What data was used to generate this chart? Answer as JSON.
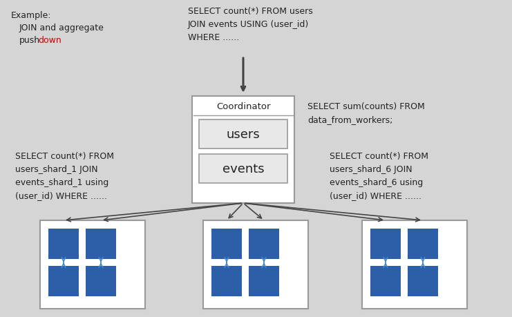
{
  "bg_color": "#d5d5d5",
  "title_color": "#222222",
  "pushdown_color": "#cc0000",
  "query_top": "SELECT count(*) FROM users\nJOIN events USING (user_id)\nWHERE ......",
  "query_right": "SELECT sum(counts) FROM\ndata_from_workers;",
  "query_left": "SELECT count(*) FROM\nusers_shard_1 JOIN\nevents_shard_1 using\n(user_id) WHERE ......",
  "query_right2": "SELECT count(*) FROM\nusers_shard_6 JOIN\nevents_shard_6 using\n(user_id) WHERE ......",
  "coordinator_label": "Coordinator",
  "users_label": "users",
  "events_label": "events",
  "box_color": "#ffffff",
  "box_edge": "#999999",
  "blue_color": "#2d5fa8",
  "arrow_color": "#444444",
  "double_arrow_color": "#4488cc",
  "font_size_small": 8.5,
  "font_size_coord": 9,
  "font_size_label": 13
}
